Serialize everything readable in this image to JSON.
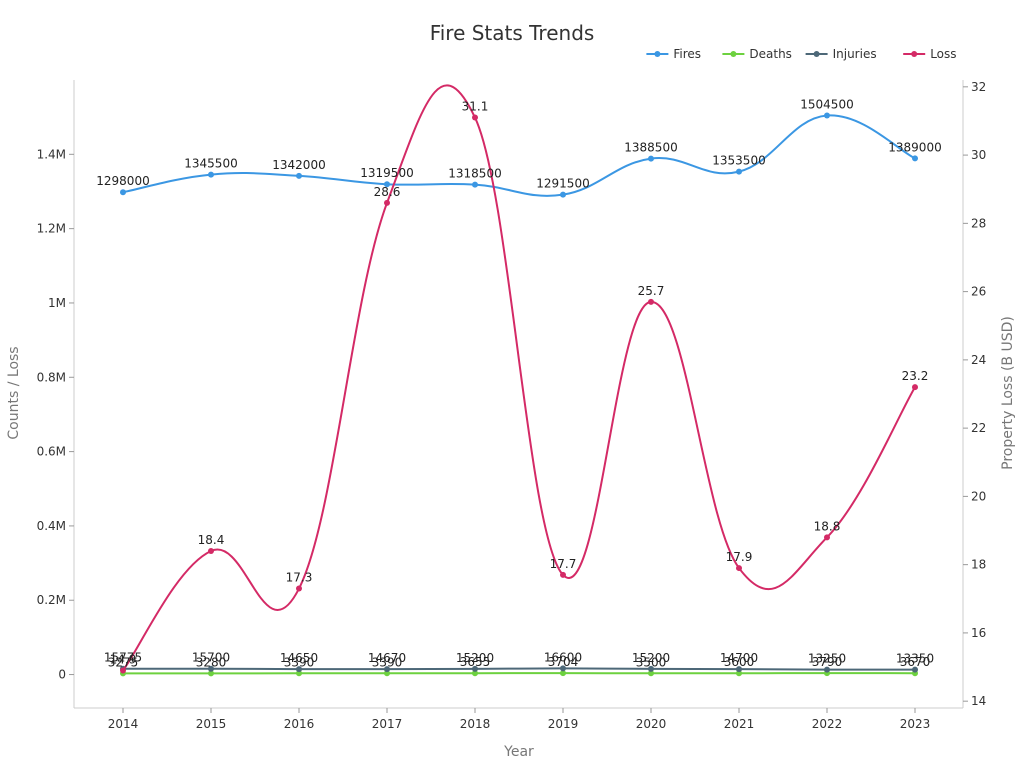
{
  "chart_data": {
    "type": "line",
    "title": "Fire Stats Trends",
    "xlabel": "Year",
    "ylabel": "Counts / Loss",
    "y2label": "Property Loss (B USD)",
    "categories": [
      "2014",
      "2015",
      "2016",
      "2017",
      "2018",
      "2019",
      "2020",
      "2021",
      "2022",
      "2023"
    ],
    "ylim": [
      -90000,
      1600000
    ],
    "yticks": [
      0,
      200000,
      400000,
      600000,
      800000,
      1000000,
      1200000,
      1400000
    ],
    "ytick_labels": [
      "0",
      "0.2M",
      "0.4M",
      "0.6M",
      "0.8M",
      "1M",
      "1.2M",
      "1.4M"
    ],
    "y2lim": [
      13.8,
      32.2
    ],
    "y2ticks": [
      14,
      16,
      18,
      20,
      22,
      24,
      26,
      28,
      30,
      32
    ],
    "y2tick_labels": [
      "14",
      "16",
      "18",
      "20",
      "22",
      "24",
      "26",
      "28",
      "30",
      "32"
    ],
    "grid": false,
    "legend_position": "top-right",
    "series": [
      {
        "name": "Fires",
        "axis": "left",
        "color": "#3b97e3",
        "values": [
          1298000,
          1345500,
          1342000,
          1319500,
          1318500,
          1291500,
          1388500,
          1353500,
          1504500,
          1389000
        ],
        "labels": [
          "1298000",
          "1345500",
          "1342000",
          "1319500",
          "1318500",
          "1291500",
          "1388500",
          "1353500",
          "1504500",
          "1389000"
        ]
      },
      {
        "name": "Deaths",
        "axis": "left",
        "color": "#6dd13f",
        "values": [
          3275,
          3280,
          3390,
          3390,
          3655,
          3704,
          3500,
          3600,
          3790,
          3670
        ],
        "labels": [
          "3275",
          "3280",
          "3390",
          "3390",
          "3655",
          "3704",
          "3500",
          "3600",
          "3790",
          "3670"
        ]
      },
      {
        "name": "Injuries",
        "axis": "left",
        "color": "#4d6878",
        "values": [
          15775,
          15700,
          14650,
          14670,
          15200,
          16600,
          15200,
          14700,
          13250,
          13350
        ],
        "labels": [
          "15775",
          "15700",
          "14650",
          "14670",
          "15200",
          "16600",
          "15200",
          "14700",
          "13250",
          "13350"
        ]
      },
      {
        "name": "Loss",
        "axis": "right",
        "color": "#d42a66",
        "values": [
          14.9,
          18.4,
          17.3,
          28.6,
          31.1,
          17.7,
          25.7,
          17.9,
          18.8,
          23.2
        ],
        "labels": [
          "14.9",
          "18.4",
          "17.3",
          "28.6",
          "31.1",
          "17.7",
          "25.7",
          "17.9",
          "18.8",
          "23.2"
        ]
      }
    ]
  }
}
